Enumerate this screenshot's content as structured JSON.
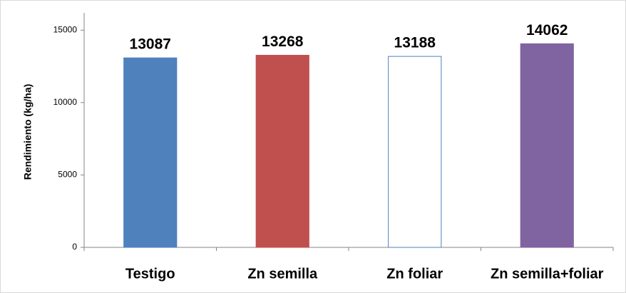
{
  "chart_data": {
    "type": "bar",
    "ylabel": "Rendimiento (kg/ha)",
    "categories": [
      "Testigo",
      "Zn semilla",
      "Zn foliar",
      "Zn semilla+foliar"
    ],
    "values": [
      13087,
      13268,
      13188,
      14062
    ],
    "colors": [
      "#4f81bd",
      "#c0504d",
      "#ffffff",
      "#8064a2"
    ],
    "edgecolors": [
      "#4f81bd",
      "#c0504d",
      "#4f81bd",
      "#8064a2"
    ],
    "ylim": [
      0,
      16000
    ],
    "yticks": [
      0,
      5000,
      10000,
      15000
    ],
    "grid": false
  }
}
